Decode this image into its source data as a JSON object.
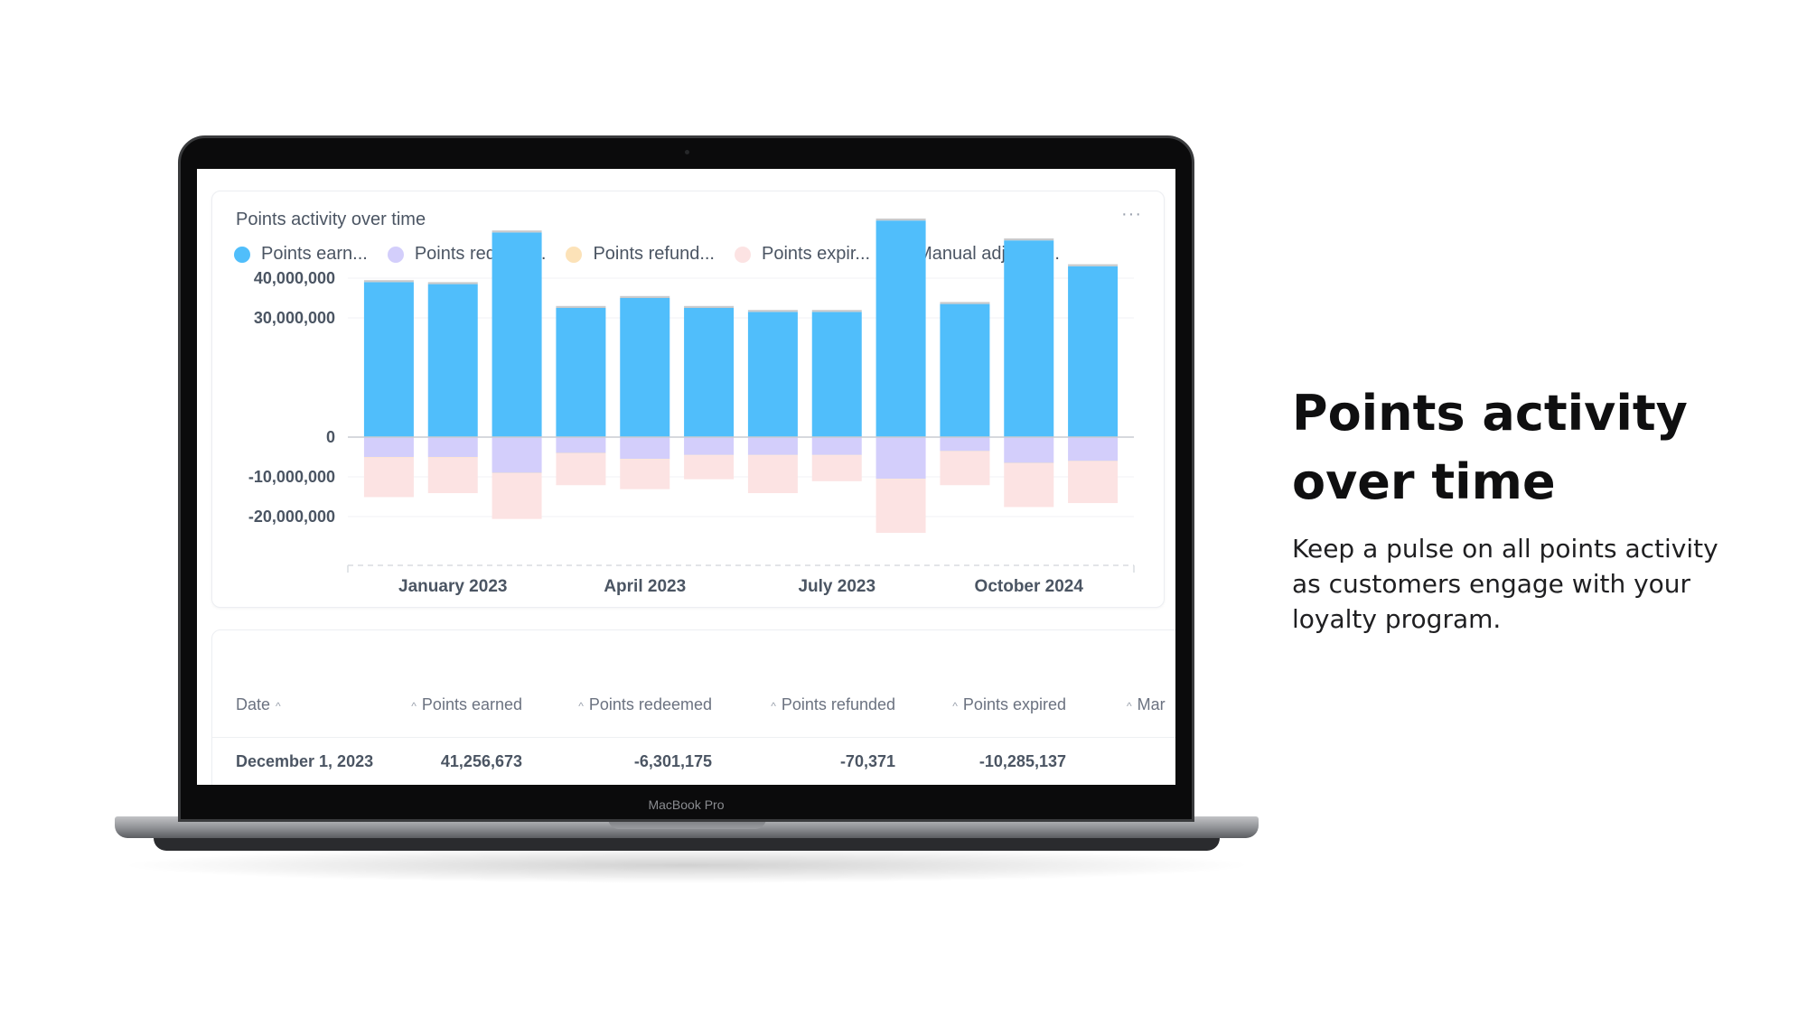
{
  "hero": {
    "title_line1": "Points activity",
    "title_line2": "over time",
    "description": "Keep a pulse on all points activity as customers engage with your loyalty program."
  },
  "device": {
    "bezel_label": "MacBook Pro"
  },
  "card": {
    "title": "Points activity over time",
    "more_icon": "more-horizontal-icon",
    "more_glyph": "···"
  },
  "legend": [
    {
      "label": "Points earn...",
      "color": "#50BEFB"
    },
    {
      "label": "Points redeem...",
      "color": "#D3CEFB"
    },
    {
      "label": "Points refund...",
      "color": "#FCE2B8"
    },
    {
      "label": "Points expir...",
      "color": "#FCE3E3"
    },
    {
      "label": "Manual adjustm...",
      "color": "#C9CACC"
    }
  ],
  "chart_data": {
    "type": "bar",
    "stacked": true,
    "y_ticks": [
      40000000,
      30000000,
      0,
      -10000000,
      -20000000
    ],
    "y_tick_labels": [
      "40,000,000",
      "30,000,000",
      "0",
      "-10,000,000",
      "-20,000,000"
    ],
    "x_tick_labels": [
      "January 2023",
      "April 2023",
      "July 2023",
      "October 2024"
    ],
    "ylim": [
      -24000000,
      54000000
    ],
    "bar_count": 12,
    "series": [
      {
        "name": "Points earn...",
        "color": "#50BEFB",
        "values": [
          39000000,
          38500000,
          51500000,
          32500000,
          35000000,
          32500000,
          31500000,
          31500000,
          54500000,
          33500000,
          49500000,
          43000000
        ]
      },
      {
        "name": "Points redeem...",
        "color": "#D3CEFB",
        "values": [
          -5000000,
          -5000000,
          -9000000,
          -4000000,
          -5500000,
          -4500000,
          -4500000,
          -4500000,
          -10500000,
          -3500000,
          -6500000,
          -6000000
        ]
      },
      {
        "name": "Points refund...",
        "color": "#FCE2B8",
        "values": [
          -100000,
          -100000,
          -100000,
          -100000,
          -100000,
          -100000,
          -100000,
          -100000,
          -100000,
          -100000,
          -100000,
          -100000
        ]
      },
      {
        "name": "Points expir...",
        "color": "#FCE3E3",
        "values": [
          -10000000,
          -9000000,
          -11500000,
          -8000000,
          -7500000,
          -6000000,
          -9500000,
          -6500000,
          -13500000,
          -8500000,
          -11000000,
          -10500000
        ]
      },
      {
        "name": "Manual adjustm...",
        "color": "#C9CACC",
        "values": [
          500000,
          500000,
          500000,
          500000,
          500000,
          500000,
          500000,
          500000,
          500000,
          500000,
          500000,
          500000
        ]
      }
    ]
  },
  "table": {
    "columns": [
      "Date",
      "Points earned",
      "Points redeemed",
      "Points refunded",
      "Points expired",
      "Mar"
    ],
    "rows": [
      [
        "December 1, 2023",
        "41,256,673",
        "-6,301,175",
        "-70,371",
        "-10,285,137",
        ""
      ]
    ]
  }
}
